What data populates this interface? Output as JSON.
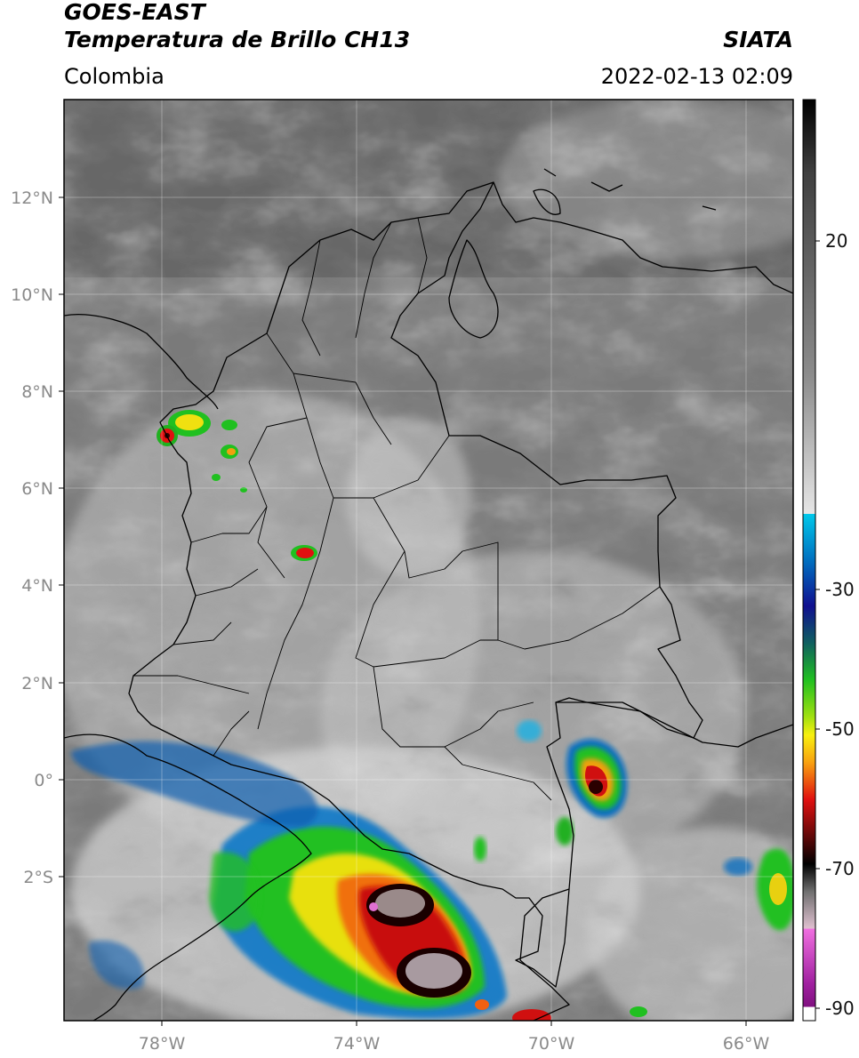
{
  "header": {
    "satellite": "GOES-EAST",
    "product": "Temperatura de Brillo CH13",
    "region": "Colombia",
    "source": "SIATA",
    "datetime": "2022-02-13 02:09"
  },
  "axes": {
    "lat_labels": [
      "12°N",
      "10°N",
      "8°N",
      "6°N",
      "4°N",
      "2°N",
      "0°",
      "2°S"
    ],
    "lon_labels": [
      "78°W",
      "74°W",
      "70°W",
      "66°W"
    ],
    "lat_range": [
      -5,
      14
    ],
    "lon_range": [
      -80,
      -65
    ]
  },
  "colorbar": {
    "tick_labels": [
      "20",
      "-30",
      "-50",
      "-70",
      "-90"
    ],
    "tick_values": [
      20,
      -30,
      -50,
      -70,
      -90
    ],
    "range": [
      -92,
      40
    ]
  },
  "colors": {
    "cold": "#000000",
    "gray_light": "#d8d8d8",
    "cyan": "#00c8e8",
    "navy": "#10108c",
    "green": "#20d020",
    "yellow": "#f8e010",
    "orange": "#f89010",
    "red": "#e01010",
    "magenta": "#e060d0",
    "purple": "#901090"
  }
}
